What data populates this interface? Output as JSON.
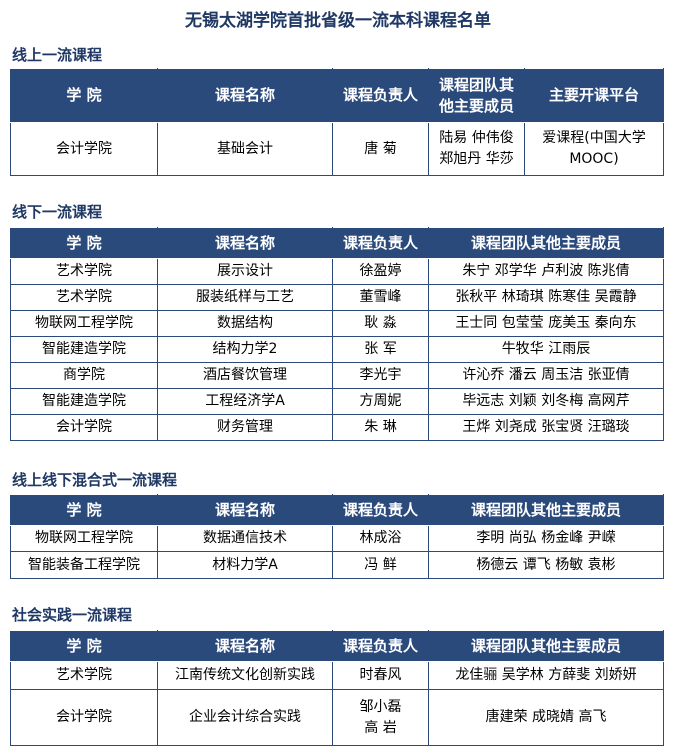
{
  "title": "无锡太湖学院首批省级一流本科课程名单",
  "sections": [
    {
      "heading": "线上一流课程",
      "table": {
        "columns": [
          "学 院",
          "课程名称",
          "课程负责人",
          "课程团队其\n他主要成员",
          "主要开课平台"
        ],
        "rows": [
          [
            "会计学院",
            "基础会计",
            "唐 菊",
            "陆易 仲伟俊\n郑旭丹 华莎",
            "爱课程(中国大学\nMOOC)"
          ]
        ]
      }
    },
    {
      "heading": "线下一流课程",
      "table": {
        "columns": [
          "学 院",
          "课程名称",
          "课程负责人",
          "课程团队其他主要成员"
        ],
        "rows": [
          [
            "艺术学院",
            "展示设计",
            "徐盈婷",
            "朱宁 邓学华 卢利波 陈兆倩"
          ],
          [
            "艺术学院",
            "服装纸样与工艺",
            "董雪峰",
            "张秋平 林琦琪 陈寒佳 吴霞静"
          ],
          [
            "物联网工程学院",
            "数据结构",
            "耿 淼",
            "王士同 包莹莹 庞美玉 秦向东"
          ],
          [
            "智能建造学院",
            "结构力学2",
            "张 军",
            "牛牧华 江雨辰"
          ],
          [
            "商学院",
            "酒店餐饮管理",
            "李光宇",
            "许沁乔 潘云 周玉洁 张亚倩"
          ],
          [
            "智能建造学院",
            "工程经济学A",
            "方周妮",
            "毕远志 刘颖 刘冬梅 高网芹"
          ],
          [
            "会计学院",
            "财务管理",
            "朱 琳",
            "王烨 刘尧成 张宝贤 汪璐琰"
          ]
        ]
      }
    },
    {
      "heading": "线上线下混合式一流课程",
      "table": {
        "columns": [
          "学 院",
          "课程名称",
          "课程负责人",
          "课程团队其他主要成员"
        ],
        "rows": [
          [
            "物联网工程学院",
            "数据通信技术",
            "林成浴",
            "李明 尚弘 杨金峰 尹嵘"
          ],
          [
            "智能装备工程学院",
            "材料力学A",
            "冯 鲜",
            "杨德云 谭飞 杨敏 袁彬"
          ]
        ]
      }
    },
    {
      "heading": "社会实践一流课程",
      "table": {
        "columns": [
          "学 院",
          "课程名称",
          "课程负责人",
          "课程团队其他主要成员"
        ],
        "rows": [
          [
            "艺术学院",
            "江南传统文化创新实践",
            "时春风",
            "龙佳骊 吴学林 方薛斐 刘娇妍"
          ],
          [
            "会计学院",
            "企业会计综合实践",
            "邹小磊\n高 岩",
            "唐建荣 成晓婧 高飞"
          ]
        ]
      }
    }
  ]
}
